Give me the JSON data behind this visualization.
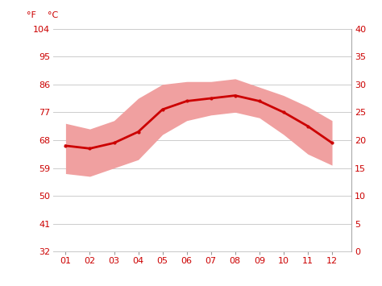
{
  "months": [
    1,
    2,
    3,
    4,
    5,
    6,
    7,
    8,
    9,
    10,
    11,
    12
  ],
  "month_labels": [
    "01",
    "02",
    "03",
    "04",
    "05",
    "06",
    "07",
    "08",
    "09",
    "10",
    "11",
    "12"
  ],
  "avg_temp_c": [
    19.0,
    18.5,
    19.5,
    21.5,
    25.5,
    27.0,
    27.5,
    28.0,
    27.0,
    25.0,
    22.5,
    19.5
  ],
  "max_temp_c": [
    23.0,
    22.0,
    23.5,
    27.5,
    30.0,
    30.5,
    30.5,
    31.0,
    29.5,
    28.0,
    26.0,
    23.5
  ],
  "min_temp_c": [
    14.0,
    13.5,
    15.0,
    16.5,
    21.0,
    23.5,
    24.5,
    25.0,
    24.0,
    21.0,
    17.5,
    15.5
  ],
  "line_color": "#cc0000",
  "band_color": "#f0a0a0",
  "background_color": "#ffffff",
  "grid_color": "#cccccc",
  "tick_color": "#cc0000",
  "label_F": "°F",
  "label_C": "°C",
  "yticks_c": [
    0,
    5,
    10,
    15,
    20,
    25,
    30,
    35,
    40
  ],
  "yticks_f": [
    32,
    41,
    50,
    59,
    68,
    77,
    86,
    95,
    104
  ],
  "ymin_c": 0,
  "ymax_c": 40,
  "xmin": 0.5,
  "xmax": 12.8
}
